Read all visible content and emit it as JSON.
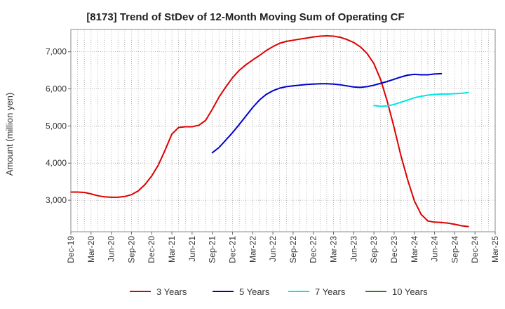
{
  "chart_data": {
    "type": "line",
    "title": "[8173]  Trend of StDev of 12-Month Moving Sum of Operating CF",
    "xlabel": "",
    "ylabel": "Amount (million yen)",
    "ylim": [
      2150,
      7600
    ],
    "yticks": [
      3000,
      4000,
      5000,
      6000,
      7000
    ],
    "ytick_labels": [
      "3,000",
      "4,000",
      "5,000",
      "6,000",
      "7,000"
    ],
    "xticks": [
      "Dec-19",
      "Mar-20",
      "Jun-20",
      "Sep-20",
      "Dec-20",
      "Mar-21",
      "Jun-21",
      "Sep-21",
      "Dec-21",
      "Mar-22",
      "Jun-22",
      "Sep-22",
      "Dec-22",
      "Mar-23",
      "Jun-23",
      "Sep-23",
      "Dec-23",
      "Mar-24",
      "Jun-24",
      "Sep-24",
      "Dec-24",
      "Mar-25"
    ],
    "grid": true,
    "legend_position": "bottom",
    "series": [
      {
        "name": "3 Years",
        "color": "#dd0000",
        "start": "Dec-19",
        "values": [
          3220,
          3220,
          3210,
          3170,
          3120,
          3090,
          3080,
          3080,
          3100,
          3150,
          3250,
          3420,
          3650,
          3950,
          4350,
          4780,
          4960,
          4980,
          4980,
          5020,
          5150,
          5450,
          5780,
          6050,
          6300,
          6500,
          6650,
          6780,
          6900,
          7030,
          7140,
          7230,
          7280,
          7310,
          7340,
          7370,
          7400,
          7420,
          7430,
          7420,
          7390,
          7330,
          7250,
          7130,
          6950,
          6680,
          6250,
          5650,
          4950,
          4200,
          3550,
          2980,
          2620,
          2440,
          2410,
          2400,
          2380,
          2350,
          2310,
          2290
        ]
      },
      {
        "name": "5 Years",
        "color": "#0000cc",
        "start": "Sep-21",
        "values": [
          4280,
          4420,
          4620,
          4820,
          5040,
          5270,
          5500,
          5700,
          5850,
          5950,
          6020,
          6060,
          6080,
          6100,
          6120,
          6130,
          6140,
          6140,
          6130,
          6110,
          6080,
          6050,
          6040,
          6060,
          6100,
          6150,
          6200,
          6260,
          6320,
          6370,
          6390,
          6380,
          6380,
          6400,
          6410
        ]
      },
      {
        "name": "7 Years",
        "color": "#00e5e5",
        "start": "Sep-23",
        "values": [
          5550,
          5530,
          5540,
          5580,
          5640,
          5700,
          5760,
          5800,
          5830,
          5850,
          5860,
          5860,
          5870,
          5880,
          5900
        ]
      },
      {
        "name": "10 Years",
        "color": "#1a8a1a",
        "start": "Dec-24",
        "values": []
      }
    ]
  }
}
